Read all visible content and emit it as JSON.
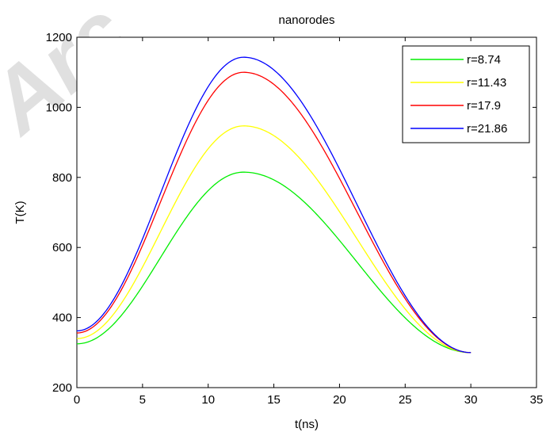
{
  "watermark": "Arc",
  "chart_data": {
    "type": "line",
    "title": "nanorodes",
    "xlabel": "t(ns)",
    "ylabel": "T(K)",
    "xlim": [
      0,
      35
    ],
    "ylim": [
      200,
      1200
    ],
    "xticks": [
      0,
      5,
      10,
      15,
      20,
      25,
      30,
      35
    ],
    "yticks": [
      200,
      400,
      600,
      800,
      1000,
      1200
    ],
    "grid": false,
    "legend_position": "top-right",
    "series": [
      {
        "name": "r=8.74",
        "color": "#00ee00",
        "t_start": 0,
        "t_end": 30,
        "T_start": 325,
        "T_peak": 815,
        "t_peak": 12.7,
        "T_end": 300
      },
      {
        "name": "r=11.43",
        "color": "#ffff00",
        "t_start": 0,
        "t_end": 30,
        "T_start": 340,
        "T_peak": 947,
        "t_peak": 12.7,
        "T_end": 300
      },
      {
        "name": "r=17.9",
        "color": "#ff0000",
        "t_start": 0,
        "t_end": 30,
        "T_start": 356,
        "T_peak": 1100,
        "t_peak": 12.7,
        "T_end": 300
      },
      {
        "name": "r=21.86",
        "color": "#0000ff",
        "t_start": 0,
        "t_end": 30,
        "T_start": 362,
        "T_peak": 1143,
        "t_peak": 12.7,
        "T_end": 300
      }
    ]
  }
}
